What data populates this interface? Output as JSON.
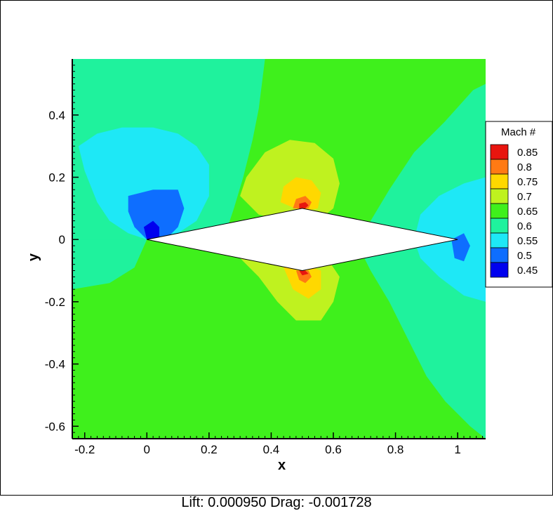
{
  "footer_text": "Lift: 0.000950 Drag: -0.001728",
  "chart_data": {
    "type": "heatmap",
    "title": "",
    "xlabel": "x",
    "ylabel": "y",
    "xlim": [
      -0.24,
      1.09
    ],
    "ylim": [
      -0.64,
      0.58
    ],
    "x_ticks": [
      {
        "v": -0.2,
        "label": "-0.2"
      },
      {
        "v": 0,
        "label": "0"
      },
      {
        "v": 0.2,
        "label": "0.2"
      },
      {
        "v": 0.4,
        "label": "0.4"
      },
      {
        "v": 0.6,
        "label": "0.6"
      },
      {
        "v": 0.8,
        "label": "0.8"
      },
      {
        "v": 1,
        "label": "1"
      }
    ],
    "y_ticks": [
      {
        "v": 0.4,
        "label": "0.4"
      },
      {
        "v": 0.2,
        "label": "0.2"
      },
      {
        "v": 0,
        "label": "0"
      },
      {
        "v": -0.2,
        "label": "-0.2"
      },
      {
        "v": -0.4,
        "label": "-0.4"
      },
      {
        "v": -0.6,
        "label": "-0.6"
      }
    ],
    "legend": {
      "title": "Mach #",
      "placement": "right",
      "levels": [
        {
          "label": "0.85",
          "color": "#e8150f"
        },
        {
          "label": "0.8",
          "color": "#ff7a14"
        },
        {
          "label": "0.75",
          "color": "#ffd800"
        },
        {
          "label": "0.7",
          "color": "#bff21f"
        },
        {
          "label": "0.65",
          "color": "#3ff01c"
        },
        {
          "label": "0.6",
          "color": "#1ff29d"
        },
        {
          "label": "0.55",
          "color": "#1ee8f6"
        },
        {
          "label": "0.5",
          "color": "#0e6eff"
        },
        {
          "label": "0.45",
          "color": "#0000ee"
        }
      ]
    },
    "background_level": "0.65",
    "regions": [
      {
        "level": "0.6",
        "points": [
          [
            -0.24,
            0.58
          ],
          [
            0.38,
            0.58
          ],
          [
            0.36,
            0.42
          ],
          [
            0.34,
            0.32
          ],
          [
            0.31,
            0.2
          ],
          [
            0.28,
            0.1
          ],
          [
            0.26,
            0.04
          ],
          [
            0.0,
            0.0
          ],
          [
            -0.1,
            -0.02
          ],
          [
            -0.24,
            -0.05
          ]
        ]
      },
      {
        "level": "0.6",
        "points": [
          [
            1.09,
            0.5
          ],
          [
            1.05,
            0.48
          ],
          [
            0.96,
            0.38
          ],
          [
            0.86,
            0.28
          ],
          [
            0.78,
            0.16
          ],
          [
            0.72,
            0.06
          ],
          [
            0.68,
            -0.02
          ],
          [
            0.72,
            -0.1
          ],
          [
            0.78,
            -0.2
          ],
          [
            0.84,
            -0.32
          ],
          [
            0.9,
            -0.44
          ],
          [
            0.96,
            -0.52
          ],
          [
            1.04,
            -0.6
          ],
          [
            1.09,
            -0.64
          ]
        ]
      },
      {
        "level": "0.6",
        "points": [
          [
            -0.24,
            -0.16
          ],
          [
            -0.12,
            -0.14
          ],
          [
            -0.04,
            -0.09
          ],
          [
            0.0,
            0.0
          ],
          [
            -0.24,
            0.0
          ]
        ]
      },
      {
        "level": "0.55",
        "points": [
          [
            -0.22,
            0.3
          ],
          [
            -0.2,
            0.22
          ],
          [
            -0.16,
            0.12
          ],
          [
            -0.12,
            0.06
          ],
          [
            -0.06,
            0.02
          ],
          [
            0.0,
            0.0
          ],
          [
            0.1,
            0.02
          ],
          [
            0.16,
            0.06
          ],
          [
            0.2,
            0.14
          ],
          [
            0.2,
            0.24
          ],
          [
            0.16,
            0.3
          ],
          [
            0.1,
            0.34
          ],
          [
            0.02,
            0.36
          ],
          [
            -0.08,
            0.36
          ],
          [
            -0.16,
            0.34
          ]
        ]
      },
      {
        "level": "0.55",
        "points": [
          [
            1.09,
            0.2
          ],
          [
            1.02,
            0.18
          ],
          [
            0.94,
            0.14
          ],
          [
            0.88,
            0.08
          ],
          [
            0.86,
            0.0
          ],
          [
            0.88,
            -0.06
          ],
          [
            0.94,
            -0.12
          ],
          [
            1.02,
            -0.18
          ],
          [
            1.09,
            -0.2
          ]
        ]
      },
      {
        "level": "0.5",
        "points": [
          [
            -0.06,
            0.14
          ],
          [
            0.02,
            0.16
          ],
          [
            0.1,
            0.16
          ],
          [
            0.12,
            0.1
          ],
          [
            0.1,
            0.04
          ],
          [
            0.06,
            0.0
          ],
          [
            0.0,
            0.0
          ],
          [
            -0.04,
            0.04
          ],
          [
            -0.06,
            0.09
          ]
        ]
      },
      {
        "level": "0.5",
        "points": [
          [
            0.98,
            0.0
          ],
          [
            1.02,
            0.02
          ],
          [
            1.04,
            -0.02
          ],
          [
            1.02,
            -0.07
          ],
          [
            0.99,
            -0.06
          ]
        ]
      },
      {
        "level": "0.45",
        "points": [
          [
            -0.01,
            0.04
          ],
          [
            0.02,
            0.06
          ],
          [
            0.04,
            0.04
          ],
          [
            0.04,
            0.0
          ],
          [
            0.0,
            0.0
          ]
        ]
      },
      {
        "level": "0.7",
        "points": [
          [
            0.3,
            0.14
          ],
          [
            0.32,
            0.2
          ],
          [
            0.38,
            0.28
          ],
          [
            0.46,
            0.32
          ],
          [
            0.54,
            0.31
          ],
          [
            0.6,
            0.26
          ],
          [
            0.62,
            0.18
          ],
          [
            0.6,
            0.1
          ],
          [
            0.55,
            0.06
          ],
          [
            0.45,
            0.06
          ],
          [
            0.36,
            0.08
          ]
        ]
      },
      {
        "level": "0.7",
        "points": [
          [
            0.3,
            -0.06
          ],
          [
            0.36,
            -0.12
          ],
          [
            0.42,
            -0.2
          ],
          [
            0.48,
            -0.26
          ],
          [
            0.56,
            -0.26
          ],
          [
            0.6,
            -0.2
          ],
          [
            0.62,
            -0.12
          ],
          [
            0.58,
            -0.06
          ],
          [
            0.45,
            -0.04
          ]
        ]
      },
      {
        "level": "0.75",
        "points": [
          [
            0.43,
            0.12
          ],
          [
            0.44,
            0.17
          ],
          [
            0.48,
            0.2
          ],
          [
            0.53,
            0.19
          ],
          [
            0.56,
            0.15
          ],
          [
            0.55,
            0.1
          ],
          [
            0.5,
            0.09
          ]
        ]
      },
      {
        "level": "0.75",
        "points": [
          [
            0.44,
            -0.09
          ],
          [
            0.47,
            -0.16
          ],
          [
            0.52,
            -0.19
          ],
          [
            0.56,
            -0.16
          ],
          [
            0.56,
            -0.1
          ],
          [
            0.5,
            -0.08
          ]
        ]
      },
      {
        "level": "0.8",
        "points": [
          [
            0.47,
            0.1
          ],
          [
            0.48,
            0.13
          ],
          [
            0.51,
            0.14
          ],
          [
            0.53,
            0.12
          ],
          [
            0.52,
            0.1
          ]
        ]
      },
      {
        "level": "0.8",
        "points": [
          [
            0.48,
            -0.1
          ],
          [
            0.49,
            -0.13
          ],
          [
            0.51,
            -0.14
          ],
          [
            0.53,
            -0.12
          ],
          [
            0.52,
            -0.1
          ]
        ]
      },
      {
        "level": "0.85",
        "points": [
          [
            0.49,
            0.1
          ],
          [
            0.49,
            0.115
          ],
          [
            0.51,
            0.12
          ],
          [
            0.52,
            0.11
          ],
          [
            0.51,
            0.1
          ]
        ]
      },
      {
        "level": "0.85",
        "points": [
          [
            0.49,
            -0.1
          ],
          [
            0.5,
            -0.115
          ],
          [
            0.52,
            -0.11
          ],
          [
            0.51,
            -0.1
          ]
        ]
      }
    ],
    "airfoil": [
      [
        0.0,
        0.0
      ],
      [
        0.5,
        0.1
      ],
      [
        1.0,
        0.0
      ],
      [
        0.5,
        -0.1
      ]
    ]
  }
}
